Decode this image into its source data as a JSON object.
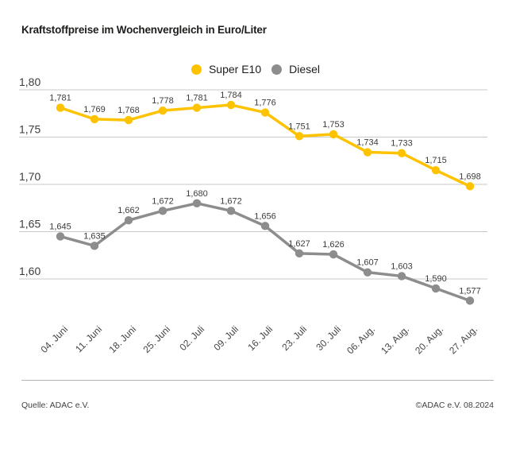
{
  "title": "Kraftstoffpreise im Wochenvergleich in Euro/Liter",
  "legend": [
    {
      "label": "Super E10",
      "color": "#FDC300"
    },
    {
      "label": "Diesel",
      "color": "#8D8D8D"
    }
  ],
  "footer": {
    "source": "Quelle: ADAC e.V.",
    "copyright": "©ADAC e.V. 08.2024"
  },
  "chart_data": {
    "type": "line",
    "title": "Kraftstoffpreise im Wochenvergleich in Euro/Liter",
    "categories": [
      "04. Juni",
      "11. Juni",
      "18. Juni",
      "25. Juni",
      "02. Juli",
      "09. Juli",
      "16. Juli",
      "23. Juli",
      "30. Juli",
      "06. Aug.",
      "13. Aug.",
      "20. Aug.",
      "27. Aug."
    ],
    "series": [
      {
        "name": "Super E10",
        "color": "#FDC300",
        "values": [
          1.781,
          1.769,
          1.768,
          1.778,
          1.781,
          1.784,
          1.776,
          1.751,
          1.753,
          1.734,
          1.733,
          1.715,
          1.698
        ]
      },
      {
        "name": "Diesel",
        "color": "#8D8D8D",
        "values": [
          1.645,
          1.635,
          1.662,
          1.672,
          1.68,
          1.672,
          1.656,
          1.627,
          1.626,
          1.607,
          1.603,
          1.59,
          1.577
        ]
      }
    ],
    "xlabel": "",
    "ylabel": "Euro/Liter",
    "ylim": [
      1.56,
      1.81
    ],
    "yticks": [
      1.8,
      1.75,
      1.7,
      1.65,
      1.6
    ],
    "ytick_labels": [
      "1,80",
      "1,75",
      "1,70",
      "1,65",
      "1,60"
    ],
    "grid": true,
    "legend_position": "top-center",
    "value_labels": true,
    "value_label_format": "decimal-comma-3",
    "colors": {
      "gridline": "#C9C9C9",
      "tick_text": "#3C3C3B",
      "value_text": "#3C3C3B",
      "x_label_text": "#454545"
    }
  }
}
